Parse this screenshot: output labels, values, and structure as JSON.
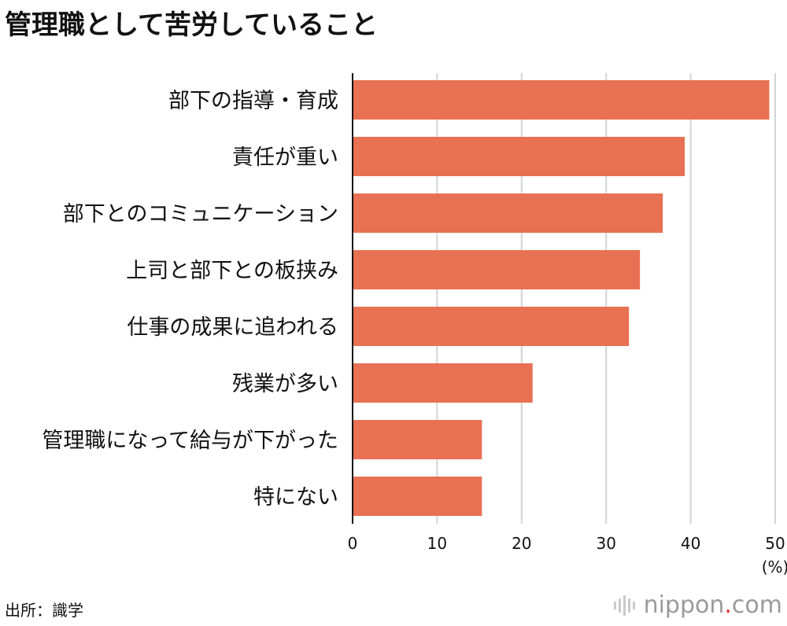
{
  "title": "管理職として苦労していること",
  "source": "出所：識学",
  "brand": {
    "name": "nippon",
    "dot": ".",
    "tld": "com"
  },
  "colors": {
    "bar": "#e87053",
    "grid": "#d3d3d3",
    "axis": "#111111"
  },
  "chart_data": {
    "type": "bar",
    "orientation": "horizontal",
    "title": "管理職として苦労していること",
    "unit": "(%)",
    "categories": [
      "部下の指導・育成",
      "責任が重い",
      "部下とのコミュニケーション",
      "上司と部下との板挟み",
      "仕事の成果に追われる",
      "残業が多い",
      "管理職になって給与が下がった",
      "特にない"
    ],
    "values": [
      49.3,
      39.3,
      36.7,
      34.0,
      32.7,
      21.3,
      15.3,
      15.3
    ],
    "xlim": [
      0,
      50
    ],
    "ticks": [
      0,
      10,
      20,
      30,
      40,
      50
    ],
    "grid": true,
    "legend": "none"
  }
}
